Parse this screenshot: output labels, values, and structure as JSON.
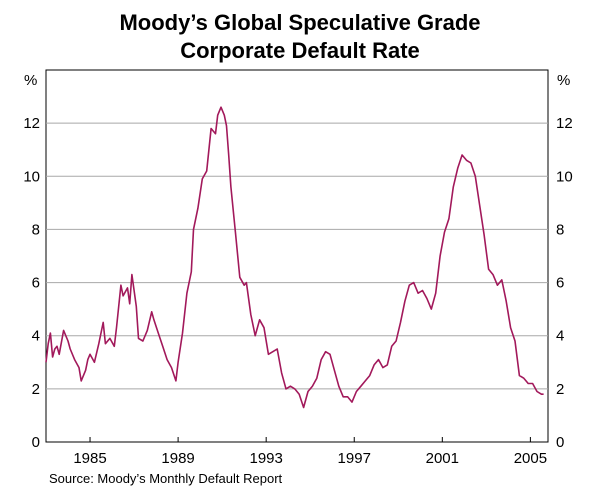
{
  "chart_data": {
    "type": "line",
    "title_lines": [
      "Moody’s Global Speculative Grade",
      "Corporate Default Rate"
    ],
    "ylabel_left": "%",
    "ylabel_right": "%",
    "ylim": [
      0,
      14
    ],
    "yticks": [
      0,
      2,
      4,
      6,
      8,
      10,
      12
    ],
    "xlim": [
      1983.0,
      2005.8
    ],
    "xticks": [
      1985,
      1989,
      1993,
      1997,
      2001,
      2005
    ],
    "grid": true,
    "series": [
      {
        "name": "Default rate",
        "color": "#a2195b",
        "x": [
          1983.0,
          1983.1,
          1983.2,
          1983.3,
          1983.4,
          1983.5,
          1983.6,
          1983.8,
          1984.0,
          1984.1,
          1984.3,
          1984.5,
          1984.6,
          1984.8,
          1984.9,
          1985.0,
          1985.2,
          1985.4,
          1985.6,
          1985.7,
          1985.9,
          1986.1,
          1986.2,
          1986.4,
          1986.5,
          1986.7,
          1986.8,
          1986.9,
          1987.1,
          1987.2,
          1987.4,
          1987.6,
          1987.8,
          1987.9,
          1988.1,
          1988.3,
          1988.5,
          1988.7,
          1988.9,
          1989.0,
          1989.2,
          1989.4,
          1989.6,
          1989.7,
          1989.9,
          1990.1,
          1990.3,
          1990.5,
          1990.7,
          1990.8,
          1990.95,
          1991.1,
          1991.2,
          1991.3,
          1991.4,
          1991.6,
          1991.8,
          1992.0,
          1992.1,
          1992.3,
          1992.5,
          1992.7,
          1992.9,
          1993.1,
          1993.3,
          1993.5,
          1993.7,
          1993.9,
          1994.1,
          1994.3,
          1994.5,
          1994.7,
          1994.9,
          1995.1,
          1995.3,
          1995.5,
          1995.7,
          1995.9,
          1996.1,
          1996.3,
          1996.5,
          1996.7,
          1996.9,
          1997.1,
          1997.3,
          1997.5,
          1997.7,
          1997.9,
          1998.1,
          1998.3,
          1998.5,
          1998.7,
          1998.9,
          1999.1,
          1999.3,
          1999.5,
          1999.7,
          1999.9,
          2000.1,
          2000.3,
          2000.5,
          2000.7,
          2000.9,
          2001.1,
          2001.3,
          2001.5,
          2001.7,
          2001.9,
          2002.1,
          2002.3,
          2002.5,
          2002.7,
          2002.9,
          2003.1,
          2003.3,
          2003.5,
          2003.7,
          2003.9,
          2004.1,
          2004.3,
          2004.5,
          2004.7,
          2004.9,
          2005.1,
          2005.3,
          2005.5,
          2005.6
        ],
        "values": [
          3.0,
          3.7,
          4.1,
          3.2,
          3.5,
          3.6,
          3.3,
          4.2,
          3.8,
          3.5,
          3.1,
          2.8,
          2.3,
          2.7,
          3.1,
          3.3,
          3.0,
          3.7,
          4.5,
          3.7,
          3.9,
          3.6,
          4.3,
          5.9,
          5.5,
          5.8,
          5.2,
          6.3,
          5.1,
          3.9,
          3.8,
          4.2,
          4.9,
          4.6,
          4.1,
          3.6,
          3.1,
          2.8,
          2.3,
          3.0,
          4.1,
          5.6,
          6.4,
          8.0,
          8.8,
          9.9,
          10.2,
          11.8,
          11.6,
          12.3,
          12.6,
          12.3,
          11.9,
          10.8,
          9.6,
          7.9,
          6.2,
          5.9,
          6.0,
          4.8,
          4.0,
          4.6,
          4.3,
          3.3,
          3.4,
          3.5,
          2.6,
          2.0,
          2.1,
          2.0,
          1.8,
          1.3,
          1.9,
          2.1,
          2.4,
          3.1,
          3.4,
          3.3,
          2.7,
          2.1,
          1.7,
          1.7,
          1.5,
          1.9,
          2.1,
          2.3,
          2.5,
          2.9,
          3.1,
          2.8,
          2.9,
          3.6,
          3.8,
          4.5,
          5.3,
          5.9,
          6.0,
          5.6,
          5.7,
          5.4,
          5.0,
          5.6,
          7.0,
          7.9,
          8.4,
          9.6,
          10.3,
          10.8,
          10.6,
          10.5,
          10.0,
          8.9,
          7.8,
          6.5,
          6.3,
          5.9,
          6.1,
          5.3,
          4.3,
          3.8,
          2.5,
          2.4,
          2.2,
          2.2,
          1.9,
          1.8,
          1.8
        ]
      }
    ],
    "source": "Source: Moody’s Monthly Default Report"
  }
}
